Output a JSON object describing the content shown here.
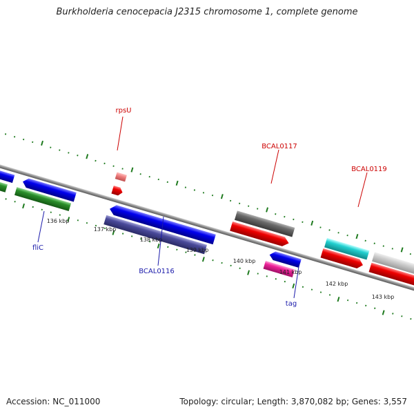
{
  "title": "Burkholderia cenocepacia J2315 chromosome 1, complete genome",
  "footer": {
    "accession": "Accession: NC_011000",
    "summary": "Topology: circular; Length: 3,870,082 bp; Genes: 3,557"
  },
  "colors": {
    "backbone": "#8a8a8a",
    "ticks": "#1e7a1e",
    "label_red": "#cc0000",
    "label_blue": "#1a1aaa",
    "tick_label": "#222222"
  },
  "scale_labels": [
    "136 kbp",
    "137 kbp",
    "138 kbp",
    "139 kbp",
    "140 kbp",
    "141 kbp",
    "142 kbp",
    "143 kbp"
  ],
  "gene_labels": [
    {
      "text": "rpsU",
      "strand": "forward"
    },
    {
      "text": "BCAL0117",
      "strand": "forward"
    },
    {
      "text": "BCAL0119",
      "strand": "forward"
    },
    {
      "text": "fliC",
      "strand": "reverse"
    },
    {
      "text": "BCAL0116",
      "strand": "reverse"
    },
    {
      "text": "tag",
      "strand": "reverse"
    }
  ]
}
